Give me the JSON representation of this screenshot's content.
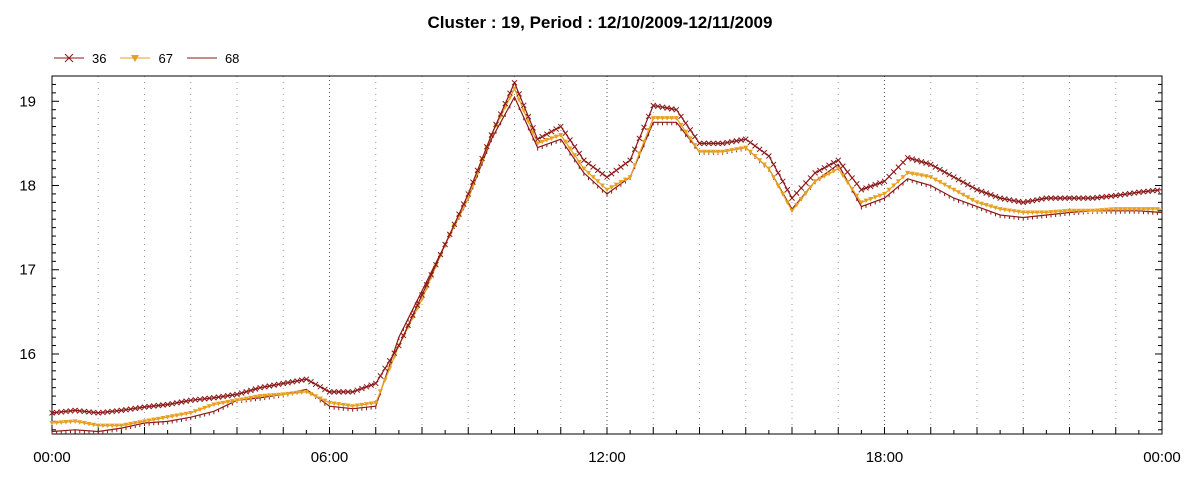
{
  "chart_data": {
    "type": "line",
    "title": "Cluster : 19, Period : 12/10/2009-12/11/2009",
    "xlabel": "",
    "ylabel": "",
    "x_unit": "hours",
    "xlim": [
      0,
      24
    ],
    "ylim": [
      15.05,
      19.3
    ],
    "x_ticks": [
      {
        "value": 0,
        "label": "00:00"
      },
      {
        "value": 6,
        "label": "06:00"
      },
      {
        "value": 12,
        "label": "12:00"
      },
      {
        "value": 18,
        "label": "18:00"
      },
      {
        "value": 24,
        "label": "00:00"
      }
    ],
    "y_ticks": [
      16,
      17,
      18,
      19
    ],
    "grid": "dotted vertical",
    "legend_position": "top-left",
    "x": [
      0,
      0.5,
      1,
      1.5,
      2,
      2.5,
      3,
      3.5,
      4,
      4.5,
      5,
      5.5,
      6,
      6.5,
      7,
      7.5,
      8,
      8.5,
      9,
      9.5,
      10,
      10.5,
      11,
      11.5,
      12,
      12.5,
      13,
      13.5,
      14,
      14.5,
      15,
      15.5,
      16,
      16.5,
      17,
      17.5,
      18,
      18.5,
      19,
      19.5,
      20,
      20.5,
      21,
      21.5,
      22,
      22.5,
      23,
      23.5,
      24
    ],
    "series": [
      {
        "name": "36",
        "color": "#8b1a1a",
        "marker": "x",
        "values": [
          15.3,
          15.33,
          15.3,
          15.33,
          15.37,
          15.4,
          15.45,
          15.48,
          15.52,
          15.6,
          15.65,
          15.7,
          15.55,
          15.55,
          15.65,
          16.1,
          16.7,
          17.3,
          17.9,
          18.6,
          19.22,
          18.55,
          18.7,
          18.3,
          18.1,
          18.3,
          18.95,
          18.9,
          18.5,
          18.5,
          18.55,
          18.35,
          17.85,
          18.15,
          18.3,
          17.95,
          18.05,
          18.33,
          18.25,
          18.1,
          17.95,
          17.85,
          17.8,
          17.85,
          17.85,
          17.85,
          17.88,
          17.92,
          17.95
        ]
      },
      {
        "name": "67",
        "color": "#e8a020",
        "marker": "triangle",
        "values": [
          15.18,
          15.2,
          15.15,
          15.15,
          15.2,
          15.25,
          15.3,
          15.4,
          15.45,
          15.5,
          15.52,
          15.55,
          15.42,
          15.38,
          15.42,
          16.1,
          16.65,
          17.3,
          17.85,
          18.6,
          19.15,
          18.5,
          18.6,
          18.2,
          17.95,
          18.1,
          18.8,
          18.8,
          18.4,
          18.4,
          18.45,
          18.2,
          17.7,
          18.05,
          18.2,
          17.8,
          17.9,
          18.15,
          18.1,
          17.95,
          17.8,
          17.72,
          17.68,
          17.68,
          17.7,
          17.7,
          17.72,
          17.72,
          17.72
        ]
      },
      {
        "name": "68",
        "color": "#8b1a1a",
        "marker": "tick",
        "values": [
          15.08,
          15.1,
          15.08,
          15.12,
          15.18,
          15.2,
          15.25,
          15.32,
          15.45,
          15.48,
          15.52,
          15.58,
          15.38,
          15.35,
          15.38,
          16.2,
          16.75,
          17.3,
          17.85,
          18.55,
          19.05,
          18.45,
          18.55,
          18.15,
          17.9,
          18.1,
          18.75,
          18.75,
          18.4,
          18.4,
          18.45,
          18.2,
          17.72,
          18.05,
          18.25,
          17.75,
          17.85,
          18.08,
          18.0,
          17.85,
          17.75,
          17.65,
          17.62,
          17.65,
          17.68,
          17.7,
          17.7,
          17.7,
          17.68
        ]
      }
    ]
  }
}
